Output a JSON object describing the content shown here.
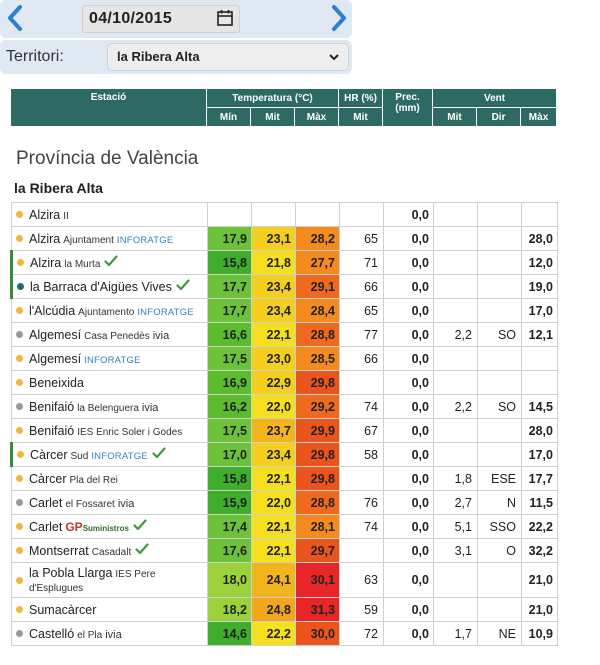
{
  "top": {
    "date": "04/10/2015",
    "territory_label": "Territori:",
    "territory_value": "la Ribera Alta"
  },
  "header": {
    "estacio": "Estació",
    "temp": "Temperatura (°C)",
    "hr": "HR (%)",
    "prec": "Prec. (mm)",
    "vent": "Vent",
    "min": "Mín",
    "mit": "Mit",
    "max": "Màx",
    "hr_mit": "Mit",
    "vent_mit": "Mit",
    "vent_dir": "Dir",
    "vent_max": "Màx"
  },
  "province": "Província de València",
  "territory": "la Ribera Alta",
  "colors": {
    "header_bg": "#2d6a64",
    "dot_yellow": "#f0b93b",
    "dot_gray": "#999999",
    "dot_teal": "#1f6b6b",
    "min_green": "#6dc23a",
    "mit_yellow": "#f5d21e",
    "max_orange": "#ef6a1e",
    "max_red": "#e8262a"
  },
  "rows": [
    {
      "name": "Alzira",
      "sub": "II",
      "tag": "",
      "dot": "yellow",
      "check": false,
      "min": "",
      "mit": "",
      "max": "",
      "hr": "",
      "prec": "0,0",
      "vmit": "",
      "vdir": "",
      "vmax": ""
    },
    {
      "name": "Alzira",
      "sub": "Ajuntament",
      "tag": "INFORATGE",
      "dot": "yellow",
      "check": false,
      "min": "17,9",
      "mit": "23,1",
      "max": "28,2",
      "hr": "65",
      "prec": "0,0",
      "vmit": "",
      "vdir": "",
      "vmax": "28,0"
    },
    {
      "name": "Alzira",
      "sub": "la Murta",
      "tag": "",
      "dot": "yellow",
      "check": true,
      "min": "15,8",
      "mit": "21,8",
      "max": "27,7",
      "hr": "71",
      "prec": "0,0",
      "vmit": "",
      "vdir": "",
      "vmax": "12,0"
    },
    {
      "name": "la Barraca d'Aigües Vives",
      "sub": "",
      "tag": "",
      "dot": "teal",
      "check": true,
      "min": "17,7",
      "mit": "23,4",
      "max": "29,1",
      "hr": "66",
      "prec": "0,0",
      "vmit": "",
      "vdir": "",
      "vmax": "19,0"
    },
    {
      "name": "l'Alcúdia",
      "sub": "Ajuntamento",
      "tag": "INFORATGE",
      "dot": "yellow",
      "check": false,
      "min": "17,7",
      "mit": "23,4",
      "max": "28,4",
      "hr": "65",
      "prec": "0,0",
      "vmit": "",
      "vdir": "",
      "vmax": "17,0"
    },
    {
      "name": "Algemesí",
      "sub": "Casa Penedès",
      "tag": "ivia",
      "dot": "gray",
      "check": false,
      "min": "16,6",
      "mit": "22,1",
      "max": "28,8",
      "hr": "77",
      "prec": "0,0",
      "vmit": "2,2",
      "vdir": "SO",
      "vmax": "12,1"
    },
    {
      "name": "Algemesí",
      "sub": "",
      "tag": "INFORATGE",
      "dot": "yellow",
      "check": false,
      "min": "17,5",
      "mit": "23,0",
      "max": "28,5",
      "hr": "66",
      "prec": "0,0",
      "vmit": "",
      "vdir": "",
      "vmax": ""
    },
    {
      "name": "Beneixida",
      "sub": "",
      "tag": "",
      "dot": "yellow",
      "check": false,
      "min": "16,9",
      "mit": "22,9",
      "max": "29,8",
      "hr": "",
      "prec": "0,0",
      "vmit": "",
      "vdir": "",
      "vmax": ""
    },
    {
      "name": "Benifaió",
      "sub": "la Belenguera",
      "tag": "ivia",
      "dot": "gray",
      "check": false,
      "min": "16,2",
      "mit": "22,0",
      "max": "29,2",
      "hr": "74",
      "prec": "0,0",
      "vmit": "2,2",
      "vdir": "SO",
      "vmax": "14,5"
    },
    {
      "name": "Benifaió",
      "sub": "IES Enric Soler i Godes",
      "tag": "",
      "dot": "yellow",
      "check": false,
      "min": "17,5",
      "mit": "23,7",
      "max": "29,9",
      "hr": "67",
      "prec": "0,0",
      "vmit": "",
      "vdir": "",
      "vmax": "28,0"
    },
    {
      "name": "Càrcer",
      "sub": "Sud",
      "tag": "INFORATGE",
      "dot": "yellow",
      "check": true,
      "min": "17,0",
      "mit": "23,4",
      "max": "29,8",
      "hr": "58",
      "prec": "0,0",
      "vmit": "",
      "vdir": "",
      "vmax": "17,0"
    },
    {
      "name": "Càrcer",
      "sub": "Pla del Rei",
      "tag": "",
      "dot": "yellow",
      "check": false,
      "min": "15,8",
      "mit": "22,1",
      "max": "29,8",
      "hr": "",
      "prec": "0,0",
      "vmit": "1,8",
      "vdir": "ESE",
      "vmax": "17,7"
    },
    {
      "name": "Carlet",
      "sub": "el Fossaret",
      "tag": "ivia",
      "dot": "gray",
      "check": false,
      "min": "15,9",
      "mit": "22,0",
      "max": "28,8",
      "hr": "76",
      "prec": "0,0",
      "vmit": "2,7",
      "vdir": "N",
      "vmax": "11,5"
    },
    {
      "name": "Carlet",
      "sub": "",
      "tag": "GP",
      "gp_sub": "Suministros",
      "dot": "yellow",
      "check": true,
      "min": "17,4",
      "mit": "22,1",
      "max": "28,1",
      "hr": "74",
      "prec": "0,0",
      "vmit": "5,1",
      "vdir": "SSO",
      "vmax": "22,2"
    },
    {
      "name": "Montserrat",
      "sub": "Casadalt",
      "tag": "",
      "dot": "yellow",
      "check": true,
      "min": "17,6",
      "mit": "22,1",
      "max": "29,7",
      "hr": "",
      "prec": "0,0",
      "vmit": "3,1",
      "vdir": "O",
      "vmax": "32,2"
    },
    {
      "name": "la Pobla Llarga",
      "sub": "IES Pere",
      "sub2": "d'Esplugues",
      "tag": "",
      "dot": "yellow",
      "check": false,
      "min": "18,0",
      "mit": "24,1",
      "max": "30,1",
      "hr": "63",
      "prec": "0,0",
      "vmit": "",
      "vdir": "",
      "vmax": "21,0"
    },
    {
      "name": "Sumacàrcer",
      "sub": "",
      "tag": "",
      "dot": "yellow",
      "check": false,
      "min": "18,2",
      "mit": "24,8",
      "max": "31,3",
      "hr": "59",
      "prec": "0,0",
      "vmit": "",
      "vdir": "",
      "vmax": "21,0"
    },
    {
      "name": "Castelló",
      "sub": "el Pla",
      "tag": "ivia",
      "dot": "gray",
      "check": false,
      "min": "14,6",
      "mit": "22,2",
      "max": "30,0",
      "hr": "72",
      "prec": "0,0",
      "vmit": "1,7",
      "vdir": "NE",
      "vmax": "10,9"
    }
  ]
}
